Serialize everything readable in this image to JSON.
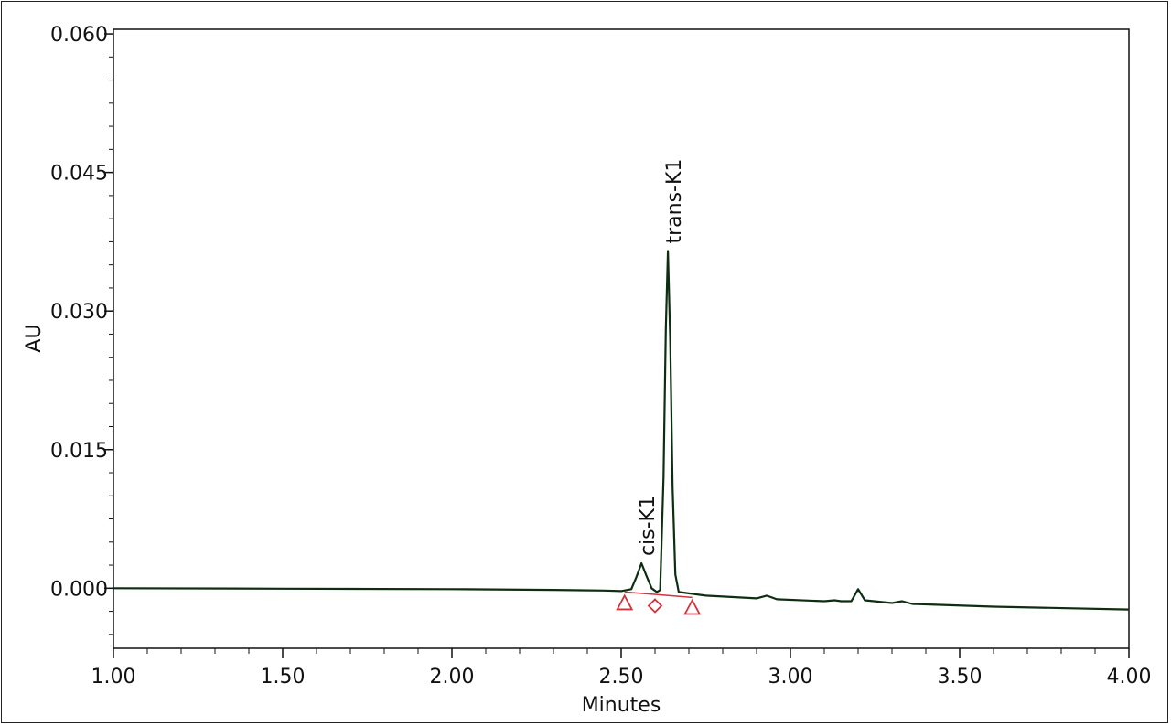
{
  "chart_data": {
    "type": "line",
    "xlabel": "Minutes",
    "ylabel": "AU",
    "xlim": [
      1.0,
      4.0
    ],
    "ylim": [
      -0.0065,
      0.0605
    ],
    "x_ticks": [
      "1.00",
      "1.50",
      "2.00",
      "2.50",
      "3.00",
      "3.50",
      "4.00"
    ],
    "y_ticks": [
      "0.000",
      "0.015",
      "0.030",
      "0.045",
      "0.060"
    ],
    "x_tick_values": [
      1.0,
      1.5,
      2.0,
      2.5,
      3.0,
      3.5,
      4.0
    ],
    "y_tick_values": [
      0.0,
      0.015,
      0.03,
      0.045,
      0.06
    ],
    "colors": {
      "trace": "#0e2e12",
      "baseline": "#d0343c",
      "markers": "#d0343c"
    },
    "trace_points": [
      [
        1.0,
        0.0
      ],
      [
        1.5,
        -5e-05
      ],
      [
        2.0,
        -0.0001
      ],
      [
        2.3,
        -0.00018
      ],
      [
        2.45,
        -0.00025
      ],
      [
        2.5,
        -0.0003
      ],
      [
        2.53,
        -0.0001
      ],
      [
        2.545,
        0.0012
      ],
      [
        2.56,
        0.0027
      ],
      [
        2.575,
        0.0013
      ],
      [
        2.59,
        0.0
      ],
      [
        2.605,
        -0.0004
      ],
      [
        2.615,
        -0.0002
      ],
      [
        2.625,
        0.012
      ],
      [
        2.632,
        0.028
      ],
      [
        2.638,
        0.0365
      ],
      [
        2.645,
        0.027
      ],
      [
        2.652,
        0.011
      ],
      [
        2.66,
        0.0015
      ],
      [
        2.67,
        -0.0004
      ],
      [
        2.75,
        -0.0008
      ],
      [
        2.9,
        -0.0011
      ],
      [
        2.93,
        -0.0008
      ],
      [
        2.96,
        -0.0012
      ],
      [
        3.1,
        -0.0014
      ],
      [
        3.13,
        -0.0013
      ],
      [
        3.15,
        -0.0014
      ],
      [
        3.18,
        -0.0014
      ],
      [
        3.2,
        -0.0001
      ],
      [
        3.22,
        -0.0013
      ],
      [
        3.3,
        -0.0016
      ],
      [
        3.33,
        -0.0014
      ],
      [
        3.36,
        -0.0017
      ],
      [
        3.6,
        -0.002
      ],
      [
        4.0,
        -0.0023
      ]
    ],
    "baseline_segment": [
      [
        2.51,
        -0.0004
      ],
      [
        2.71,
        -0.001
      ]
    ],
    "peak_markers": [
      {
        "shape": "triangle",
        "x": 2.51,
        "y": -0.0011
      },
      {
        "shape": "diamond",
        "x": 2.6,
        "y": -0.0013
      },
      {
        "shape": "triangle",
        "x": 2.71,
        "y": -0.0016
      }
    ],
    "annotations": [
      {
        "text": "cis-K1",
        "x": 2.56,
        "y": 0.0027
      },
      {
        "text": "trans-K1",
        "x": 2.638,
        "y": 0.0365
      }
    ]
  }
}
